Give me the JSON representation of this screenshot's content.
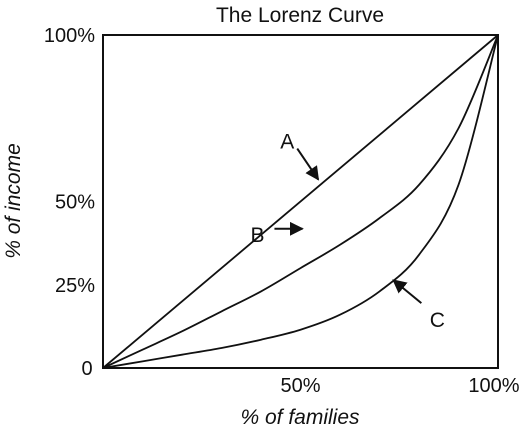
{
  "chart_data": {
    "type": "line",
    "title": "The Lorenz Curve",
    "xlabel": "% of families",
    "ylabel": "% of income",
    "xlim": [
      0,
      100
    ],
    "ylim": [
      0,
      100
    ],
    "x_ticks": [
      {
        "value": 0,
        "label": "0"
      },
      {
        "value": 50,
        "label": "50%"
      },
      {
        "value": 100,
        "label": "100%"
      }
    ],
    "y_ticks": [
      {
        "value": 25,
        "label": "25%"
      },
      {
        "value": 50,
        "label": "50%"
      },
      {
        "value": 100,
        "label": "100%"
      }
    ],
    "grid": false,
    "series": [
      {
        "name": "A",
        "x": [
          0,
          100
        ],
        "y": [
          0,
          100
        ]
      },
      {
        "name": "B",
        "x": [
          0,
          10,
          20,
          30,
          40,
          50,
          60,
          70,
          80,
          90,
          100
        ],
        "y": [
          0,
          5.5,
          11,
          17,
          23,
          30,
          37,
          45,
          55,
          72,
          100
        ]
      },
      {
        "name": "C",
        "x": [
          0,
          10,
          20,
          30,
          40,
          50,
          60,
          70,
          80,
          90,
          100
        ],
        "y": [
          0,
          2,
          4,
          6,
          8.5,
          11.5,
          16,
          23,
          34,
          55,
          100
        ]
      }
    ],
    "annotations": [
      {
        "text": "A",
        "target_x": 55,
        "target_y": 56
      },
      {
        "text": "B",
        "target_x": 51,
        "target_y": 40
      },
      {
        "text": "C",
        "target_x": 73,
        "target_y": 27
      }
    ]
  }
}
